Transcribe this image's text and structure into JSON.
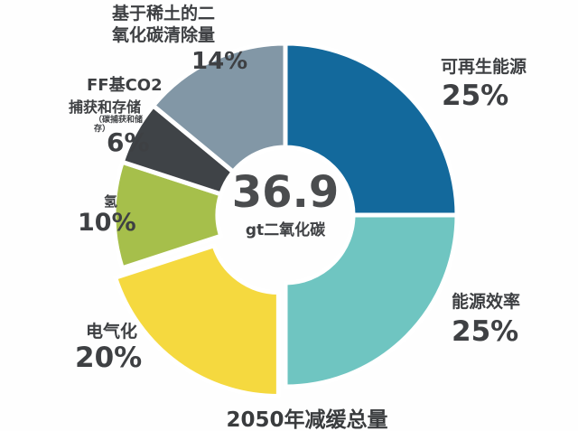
{
  "chart_data": {
    "type": "pie",
    "donut": true,
    "title": "2050年减缓总量",
    "center_label": {
      "value": "36.9",
      "unit": "gt二氧化碳"
    },
    "start_angle_deg": -90,
    "direction": "clockwise",
    "legend_position": "around-chart",
    "slices": [
      {
        "key": "renewables",
        "label": "可再生能源",
        "pct_label": "25%",
        "value": 25,
        "color": "#13699c",
        "exploded": false
      },
      {
        "key": "energy-efficiency",
        "label": "能源效率",
        "pct_label": "25%",
        "value": 25,
        "color": "#6fc5c1",
        "exploded": false
      },
      {
        "key": "electrification",
        "label": "电气化",
        "pct_label": "20%",
        "value": 20,
        "color": "#f5d93f",
        "exploded": true
      },
      {
        "key": "hydrogen",
        "label": "氢",
        "pct_label": "10%",
        "value": 10,
        "color": "#a6bf4b",
        "exploded": false
      },
      {
        "key": "ff-co2-ccs",
        "label": "FF基CO2捕获和存储",
        "label_line1": "FF基CO2",
        "label_line2": "捕获和存储",
        "label_small": "（碳捕获和储存）",
        "pct_label": "6%",
        "value": 6,
        "color": "#3f4347",
        "exploded": false
      },
      {
        "key": "rare-earth-cdr",
        "label": "基于稀土的二氧化碳清除量",
        "label_line1": "基于稀土的二",
        "label_line2": "氧化碳清除量",
        "pct_label": "14%",
        "value": 14,
        "color": "#8297a6",
        "exploded": false
      }
    ],
    "colors": {
      "text": "#3d3f42",
      "background": "#ffffff",
      "slice_gap": "#ffffff"
    }
  }
}
